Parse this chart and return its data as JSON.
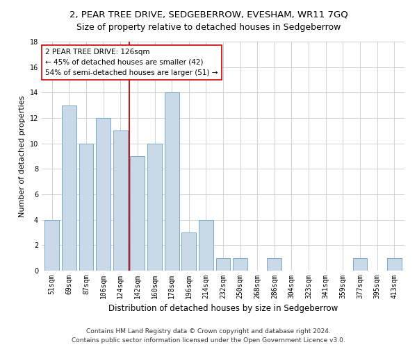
{
  "title": "2, PEAR TREE DRIVE, SEDGEBERROW, EVESHAM, WR11 7GQ",
  "subtitle": "Size of property relative to detached houses in Sedgeberrow",
  "xlabel": "Distribution of detached houses by size in Sedgeberrow",
  "ylabel": "Number of detached properties",
  "bar_labels": [
    "51sqm",
    "69sqm",
    "87sqm",
    "106sqm",
    "124sqm",
    "142sqm",
    "160sqm",
    "178sqm",
    "196sqm",
    "214sqm",
    "232sqm",
    "250sqm",
    "268sqm",
    "286sqm",
    "304sqm",
    "323sqm",
    "341sqm",
    "359sqm",
    "377sqm",
    "395sqm",
    "413sqm"
  ],
  "bar_values": [
    4,
    13,
    10,
    12,
    11,
    9,
    10,
    14,
    3,
    4,
    1,
    1,
    0,
    1,
    0,
    0,
    0,
    0,
    1,
    0,
    1
  ],
  "bar_color": "#c9d9e8",
  "bar_edge_color": "#7aaac8",
  "highlight_line_color": "#cc0000",
  "highlight_bin_index": 4,
  "annotation_text": "2 PEAR TREE DRIVE: 126sqm\n← 45% of detached houses are smaller (42)\n54% of semi-detached houses are larger (51) →",
  "annotation_box_color": "#ffffff",
  "annotation_box_edge": "#cc0000",
  "ylim": [
    0,
    18
  ],
  "yticks": [
    0,
    2,
    4,
    6,
    8,
    10,
    12,
    14,
    16,
    18
  ],
  "footer_line1": "Contains HM Land Registry data © Crown copyright and database right 2024.",
  "footer_line2": "Contains public sector information licensed under the Open Government Licence v3.0.",
  "background_color": "#ffffff",
  "plot_bg_color": "#ffffff",
  "title_fontsize": 9.5,
  "xlabel_fontsize": 8.5,
  "ylabel_fontsize": 8,
  "tick_fontsize": 7,
  "annotation_fontsize": 7.5,
  "footer_fontsize": 6.5
}
